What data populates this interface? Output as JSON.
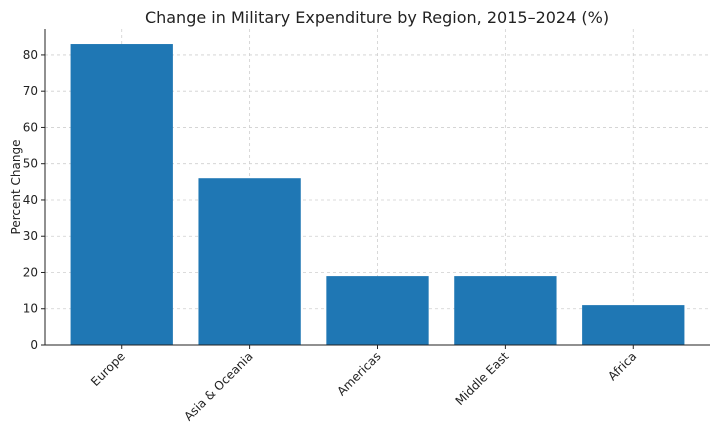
{
  "chart_data": {
    "type": "bar",
    "title": "Change in Military Expenditure by Region, 2015–2024 (%)",
    "xlabel": "",
    "ylabel": "Percent Change",
    "categories": [
      "Europe",
      "Asia & Oceania",
      "Americas",
      "Middle East",
      "Africa"
    ],
    "values": [
      83,
      46,
      19,
      19,
      11
    ],
    "ylim": [
      0,
      87.15
    ],
    "yticks": [
      0,
      10,
      20,
      30,
      40,
      50,
      60,
      70,
      80
    ],
    "grid": true,
    "bar_color": "#1f77b4"
  }
}
